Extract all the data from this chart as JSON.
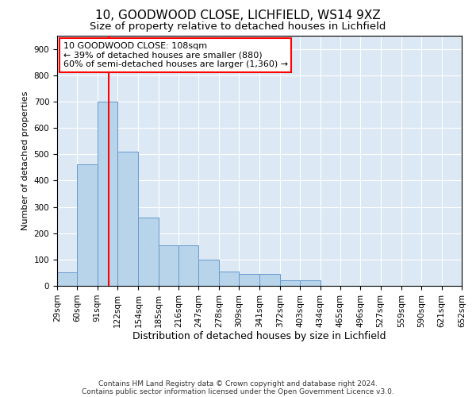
{
  "title1": "10, GOODWOOD CLOSE, LICHFIELD, WS14 9XZ",
  "title2": "Size of property relative to detached houses in Lichfield",
  "xlabel": "Distribution of detached houses by size in Lichfield",
  "ylabel": "Number of detached properties",
  "bin_edges": [
    29,
    60,
    91,
    122,
    154,
    185,
    216,
    247,
    278,
    309,
    341,
    372,
    403,
    434,
    465,
    496,
    527,
    559,
    590,
    621,
    652
  ],
  "bar_heights": [
    50,
    460,
    700,
    510,
    260,
    155,
    155,
    100,
    55,
    45,
    45,
    20,
    20,
    0,
    0,
    0,
    0,
    0,
    0,
    0
  ],
  "bar_color": "#b8d4ea",
  "bar_edge_color": "#6699cc",
  "red_line_x": 108,
  "annotation_box_text": "10 GOODWOOD CLOSE: 108sqm\n← 39% of detached houses are smaller (880)\n60% of semi-detached houses are larger (1,360) →",
  "ylim": [
    0,
    950
  ],
  "yticks": [
    0,
    100,
    200,
    300,
    400,
    500,
    600,
    700,
    800,
    900
  ],
  "background_color": "#ffffff",
  "plot_background_color": "#dce9f5",
  "grid_color": "#ffffff",
  "footer_line1": "Contains HM Land Registry data © Crown copyright and database right 2024.",
  "footer_line2": "Contains public sector information licensed under the Open Government Licence v3.0.",
  "title1_fontsize": 11,
  "title2_fontsize": 9.5,
  "xlabel_fontsize": 9,
  "ylabel_fontsize": 8,
  "tick_fontsize": 7.5,
  "annotation_fontsize": 8
}
